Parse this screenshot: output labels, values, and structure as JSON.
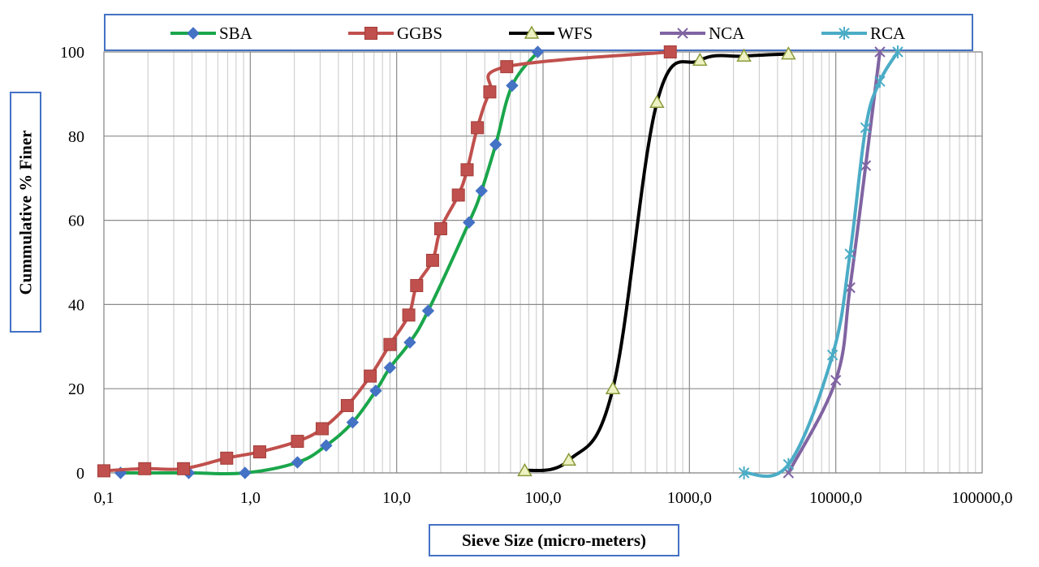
{
  "chart_data": {
    "type": "line",
    "xscale": "log",
    "xlim": [
      0.1,
      100000
    ],
    "ylim": [
      0,
      100
    ],
    "xlabel": "Sieve Size (micro-meters)",
    "ylabel": "Cummulative % Finer",
    "x_ticks": [
      "0,1",
      "1,0",
      "10,0",
      "100,0",
      "1000,0",
      "10000,0",
      "100000,0"
    ],
    "y_ticks": [
      "0",
      "20",
      "40",
      "60",
      "80",
      "100"
    ],
    "grid": true,
    "legend_position": "top",
    "series": [
      {
        "name": "SBA",
        "color": "#1aa64b",
        "marker": "diamond",
        "marker_color": "#4472c4",
        "x": [
          0.13,
          0.38,
          0.92,
          2.1,
          3.3,
          5.0,
          7.2,
          9.0,
          12.3,
          16.4,
          31.2,
          38.0,
          47.5,
          61.5,
          92.0
        ],
        "y": [
          0,
          0,
          0,
          2.5,
          6.5,
          12,
          19.5,
          25,
          31,
          38.5,
          59.5,
          67,
          78,
          92,
          100
        ]
      },
      {
        "name": "GGBS",
        "color": "#c0504d",
        "marker": "square",
        "marker_color": "#c0504d",
        "x": [
          0.1,
          0.19,
          0.35,
          0.69,
          1.16,
          2.1,
          3.1,
          4.6,
          6.6,
          9.0,
          12.1,
          13.7,
          17.6,
          20.0,
          26.4,
          30.3,
          35.6,
          43.3,
          56.5,
          740
        ],
        "y": [
          0.5,
          1,
          1,
          3.5,
          5,
          7.5,
          10.5,
          16,
          23,
          30.5,
          37.5,
          44.5,
          50.5,
          58,
          66,
          72,
          82,
          90.5,
          96.5,
          100
        ]
      },
      {
        "name": "WFS",
        "color": "#000000",
        "marker": "triangle",
        "marker_color": "#eef2c2",
        "x": [
          75,
          150,
          300,
          600,
          1180,
          2360,
          4750
        ],
        "y": [
          0.5,
          3,
          20,
          88,
          98,
          99,
          99.5
        ]
      },
      {
        "name": "NCA",
        "color": "#8064a2",
        "marker": "x",
        "marker_color": "#8064a2",
        "x": [
          4750,
          10000,
          12500,
          16000,
          20000
        ],
        "y": [
          0,
          22,
          44,
          73,
          100
        ]
      },
      {
        "name": "RCA",
        "color": "#4bacc6",
        "marker": "asterisk",
        "marker_color": "#4bacc6",
        "x": [
          2360,
          4750,
          9500,
          12500,
          16000,
          20000,
          26500
        ],
        "y": [
          0,
          2,
          28,
          52,
          82,
          93,
          100
        ]
      }
    ]
  }
}
